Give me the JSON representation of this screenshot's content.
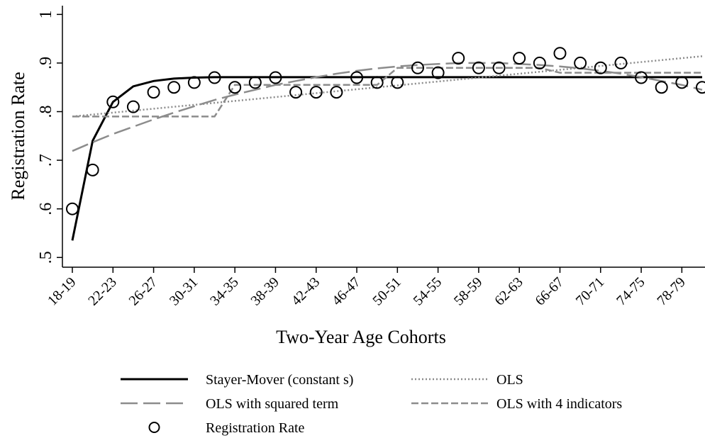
{
  "chart_data": {
    "type": "line",
    "x_label": "Two-Year Age Cohorts",
    "y_label": "Registration Rate",
    "categories": [
      "18-19",
      null,
      "22-23",
      null,
      "26-27",
      null,
      "30-31",
      null,
      "34-35",
      null,
      "38-39",
      null,
      "42-43",
      null,
      "46-47",
      null,
      "50-51",
      null,
      "54-55",
      null,
      "58-59",
      null,
      "62-63",
      null,
      "66-67",
      null,
      "70-71",
      null,
      "74-75",
      null,
      "78-79",
      null
    ],
    "series": [
      {
        "name": "Stayer-Mover (constant s)",
        "color": "#000000",
        "style": "solid",
        "values": [
          0.535,
          0.74,
          0.82,
          0.852,
          0.863,
          0.868,
          0.87,
          0.871,
          0.871,
          0.871,
          0.871,
          0.871,
          0.871,
          0.871,
          0.871,
          0.871,
          0.871,
          0.871,
          0.871,
          0.871,
          0.871,
          0.871,
          0.871,
          0.871,
          0.871,
          0.871,
          0.871,
          0.871,
          0.871,
          0.871,
          0.871,
          0.871
        ]
      },
      {
        "name": "OLS",
        "color": "#8c8c8c",
        "style": "dotted",
        "values": [
          0.79,
          0.794,
          0.798,
          0.802,
          0.806,
          0.81,
          0.814,
          0.818,
          0.822,
          0.826,
          0.83,
          0.834,
          0.838,
          0.842,
          0.846,
          0.85,
          0.854,
          0.858,
          0.862,
          0.866,
          0.87,
          0.874,
          0.878,
          0.882,
          0.886,
          0.89,
          0.894,
          0.898,
          0.902,
          0.906,
          0.91,
          0.914
        ]
      },
      {
        "name": "OLS with squared term",
        "color": "#8c8c8c",
        "style": "longdash",
        "values": [
          0.719,
          0.737,
          0.754,
          0.769,
          0.784,
          0.798,
          0.811,
          0.824,
          0.835,
          0.845,
          0.855,
          0.863,
          0.871,
          0.878,
          0.884,
          0.889,
          0.893,
          0.896,
          0.898,
          0.9,
          0.9,
          0.9,
          0.898,
          0.896,
          0.893,
          0.889,
          0.884,
          0.878,
          0.871,
          0.863,
          0.855,
          0.845
        ]
      },
      {
        "name": "OLS with 4 indicators",
        "color": "#8c8c8c",
        "style": "dashed",
        "values": [
          0.79,
          0.79,
          0.79,
          0.79,
          0.79,
          0.79,
          0.79,
          0.79,
          0.855,
          0.855,
          0.855,
          0.855,
          0.855,
          0.855,
          0.855,
          0.855,
          0.89,
          0.89,
          0.89,
          0.89,
          0.89,
          0.89,
          0.89,
          0.89,
          0.88,
          0.88,
          0.88,
          0.88,
          0.88,
          0.88,
          0.88,
          0.88
        ]
      },
      {
        "name": "Registration Rate",
        "color": "#000000",
        "style": "circle",
        "values": [
          0.6,
          0.68,
          0.82,
          0.81,
          0.84,
          0.85,
          0.86,
          0.87,
          0.85,
          0.86,
          0.87,
          0.84,
          0.84,
          0.84,
          0.87,
          0.86,
          0.86,
          0.89,
          0.88,
          0.91,
          0.89,
          0.89,
          0.91,
          0.9,
          0.92,
          0.9,
          0.89,
          0.9,
          0.87,
          0.85,
          0.86,
          0.85
        ]
      }
    ],
    "ylim": [
      0.48,
      1.018
    ],
    "yticks": [
      {
        "value": 0.5,
        "label": ".5"
      },
      {
        "value": 0.6,
        "label": ".6"
      },
      {
        "value": 0.7,
        "label": ".7"
      },
      {
        "value": 0.8,
        "label": ".8"
      },
      {
        "value": 0.9,
        "label": ".9"
      },
      {
        "value": 1,
        "label": "1"
      }
    ],
    "grid": false
  }
}
